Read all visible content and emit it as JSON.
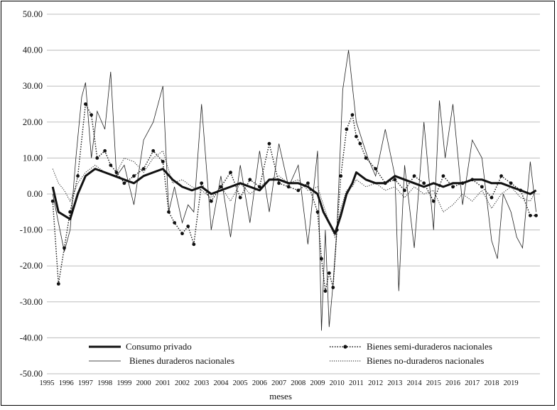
{
  "chart_data": {
    "type": "line",
    "title": "",
    "xlabel": "meses",
    "ylabel": "",
    "ylim": [
      -50,
      50
    ],
    "yticks": [
      50,
      40,
      30,
      20,
      10,
      0,
      -10,
      -20,
      -30,
      -40,
      -50
    ],
    "ytick_labels": [
      "50.00",
      "40.00",
      "30.00",
      "20.00",
      "10.00",
      "0.00",
      "-10.00",
      "-20.00",
      "-30.00",
      "-40.00",
      "-50.00"
    ],
    "xlim": [
      1995,
      2020.5
    ],
    "xticks": [
      "1995",
      "1996",
      "1997",
      "1998",
      "1999",
      "2000",
      "2001",
      "2002",
      "2003",
      "2004",
      "2005",
      "2006",
      "2007",
      "2008",
      "2009",
      "2010",
      "2011",
      "2012",
      "2013",
      "2014",
      "2015",
      "2016",
      "2017",
      "2018",
      "2019"
    ],
    "grid": "horizontal",
    "legend_position": "bottom",
    "series": [
      {
        "name": "Consumo privado",
        "style": "thick-solid",
        "x": [
          1995.3,
          1995.6,
          1995.9,
          1996.2,
          1996.6,
          1997.0,
          1997.5,
          1998.0,
          1998.5,
          1999.0,
          1999.5,
          2000.0,
          2000.5,
          2001.0,
          2001.5,
          2002.0,
          2002.5,
          2003.0,
          2003.5,
          2004.0,
          2004.5,
          2005.0,
          2005.5,
          2006.0,
          2006.5,
          2007.0,
          2007.5,
          2008.0,
          2008.5,
          2009.0,
          2009.3,
          2009.6,
          2009.9,
          2010.2,
          2010.5,
          2010.8,
          2011.0,
          2011.5,
          2012.0,
          2012.5,
          2013.0,
          2013.5,
          2014.0,
          2014.5,
          2015.0,
          2015.5,
          2016.0,
          2016.5,
          2017.0,
          2017.5,
          2018.0,
          2018.5,
          2019.0,
          2019.5,
          2020.0,
          2020.3
        ],
        "values": [
          2,
          -5,
          -6,
          -7,
          0,
          5,
          7,
          6,
          5,
          4,
          3,
          5,
          6,
          7,
          4,
          2,
          1,
          2,
          0,
          1,
          2,
          3,
          2,
          1,
          4,
          4,
          3,
          3,
          2,
          0,
          -5,
          -8,
          -11,
          -6,
          0,
          3,
          6,
          4,
          3,
          3,
          5,
          4,
          3,
          2,
          3,
          2,
          3,
          3,
          4,
          4,
          3,
          3,
          2,
          1,
          0,
          1
        ]
      },
      {
        "name": "Bienes semi-duraderos nacionales",
        "style": "dotted-markers",
        "x": [
          1995.3,
          1995.6,
          1995.9,
          1996.2,
          1996.6,
          1997.0,
          1997.3,
          1997.6,
          1998.0,
          1998.3,
          1998.6,
          1999.0,
          1999.5,
          2000.0,
          2000.5,
          2001.0,
          2001.3,
          2001.6,
          2002.0,
          2002.3,
          2002.6,
          2003.0,
          2003.5,
          2004.0,
          2004.5,
          2005.0,
          2005.5,
          2006.0,
          2006.5,
          2007.0,
          2007.5,
          2008.0,
          2008.5,
          2009.0,
          2009.2,
          2009.4,
          2009.6,
          2009.8,
          2010.0,
          2010.2,
          2010.5,
          2010.8,
          2011.0,
          2011.2,
          2011.5,
          2012.0,
          2012.5,
          2013.0,
          2013.5,
          2014.0,
          2014.5,
          2015.0,
          2015.5,
          2016.0,
          2016.5,
          2017.0,
          2017.5,
          2018.0,
          2018.5,
          2019.0,
          2019.5,
          2020.0,
          2020.3
        ],
        "values": [
          -2,
          -25,
          -15,
          -5,
          5,
          25,
          22,
          10,
          12,
          8,
          6,
          3,
          5,
          7,
          12,
          9,
          -5,
          -8,
          -11,
          -9,
          -14,
          3,
          -2,
          2,
          6,
          -1,
          4,
          2,
          14,
          3,
          2,
          1,
          3,
          -5,
          -18,
          -27,
          -22,
          -26,
          -10,
          5,
          18,
          22,
          16,
          14,
          10,
          7,
          3,
          4,
          1,
          5,
          3,
          -2,
          5,
          2,
          3,
          4,
          2,
          -1,
          5,
          3,
          1,
          -6,
          -6
        ]
      },
      {
        "name": "Bienes duraderos nacionales",
        "style": "thin-solid",
        "x": [
          1995.3,
          1995.6,
          1995.9,
          1996.2,
          1996.5,
          1996.8,
          1997.0,
          1997.3,
          1997.6,
          1998.0,
          1998.3,
          1998.6,
          1999.0,
          1999.5,
          2000.0,
          2000.5,
          2001.0,
          2001.3,
          2001.6,
          2002.0,
          2002.3,
          2002.6,
          2003.0,
          2003.5,
          2004.0,
          2004.5,
          2005.0,
          2005.5,
          2006.0,
          2006.5,
          2007.0,
          2007.5,
          2008.0,
          2008.5,
          2009.0,
          2009.2,
          2009.4,
          2009.6,
          2009.8,
          2010.0,
          2010.3,
          2010.6,
          2010.8,
          2011.0,
          2011.3,
          2011.6,
          2012.0,
          2012.5,
          2013.0,
          2013.2,
          2013.5,
          2014.0,
          2014.5,
          2015.0,
          2015.3,
          2015.6,
          2016.0,
          2016.5,
          2017.0,
          2017.5,
          2018.0,
          2018.3,
          2018.6,
          2019.0,
          2019.3,
          2019.6,
          2020.0,
          2020.3
        ],
        "values": [
          0,
          -8,
          -16,
          -10,
          10,
          27,
          31,
          10,
          23,
          18,
          34,
          5,
          8,
          -3,
          15,
          20,
          30,
          -5,
          2,
          -8,
          -3,
          -5,
          25,
          -10,
          5,
          -12,
          8,
          -8,
          12,
          -5,
          14,
          2,
          8,
          -14,
          12,
          -38,
          -10,
          -37,
          -25,
          -10,
          29,
          40,
          30,
          20,
          15,
          10,
          5,
          18,
          5,
          -27,
          8,
          -15,
          20,
          -10,
          26,
          10,
          25,
          -3,
          15,
          10,
          -13,
          -18,
          0,
          -5,
          -12,
          -15,
          9,
          -5
        ]
      },
      {
        "name": "Bienes no-duraderos nacionales",
        "style": "thin-dotted",
        "x": [
          1995.3,
          1995.6,
          1995.9,
          1996.2,
          1996.6,
          1997.0,
          1997.5,
          1998.0,
          1998.5,
          1999.0,
          1999.5,
          2000.0,
          2000.5,
          2001.0,
          2001.5,
          2002.0,
          2002.5,
          2003.0,
          2003.5,
          2004.0,
          2004.5,
          2005.0,
          2005.5,
          2006.0,
          2006.5,
          2007.0,
          2007.5,
          2008.0,
          2008.5,
          2009.0,
          2009.3,
          2009.6,
          2009.9,
          2010.2,
          2010.5,
          2010.8,
          2011.0,
          2011.5,
          2012.0,
          2012.5,
          2013.0,
          2013.5,
          2014.0,
          2014.5,
          2015.0,
          2015.5,
          2016.0,
          2016.5,
          2017.0,
          2017.5,
          2018.0,
          2018.5,
          2019.0,
          2019.5,
          2020.0,
          2020.3
        ],
        "values": [
          7,
          3,
          1,
          -2,
          3,
          6,
          8,
          6,
          5,
          10,
          9,
          6,
          10,
          12,
          3,
          4,
          2,
          1,
          -1,
          2,
          -2,
          3,
          0,
          2,
          4,
          5,
          3,
          4,
          1,
          2,
          -3,
          -8,
          -12,
          -4,
          1,
          2,
          4,
          2,
          3,
          1,
          2,
          -1,
          2,
          0,
          1,
          -5,
          -3,
          0,
          -2,
          1,
          -4,
          0,
          2,
          -1,
          -2,
          1
        ]
      }
    ]
  },
  "legend": {
    "consumo": "Consumo privado",
    "semi": "Bienes semi-duraderos nacionales",
    "duraderos": "Bienes duraderos nacionales",
    "noduraderos": "Bienes no-duraderos nacionales"
  },
  "axis": {
    "xlabel": "meses"
  }
}
